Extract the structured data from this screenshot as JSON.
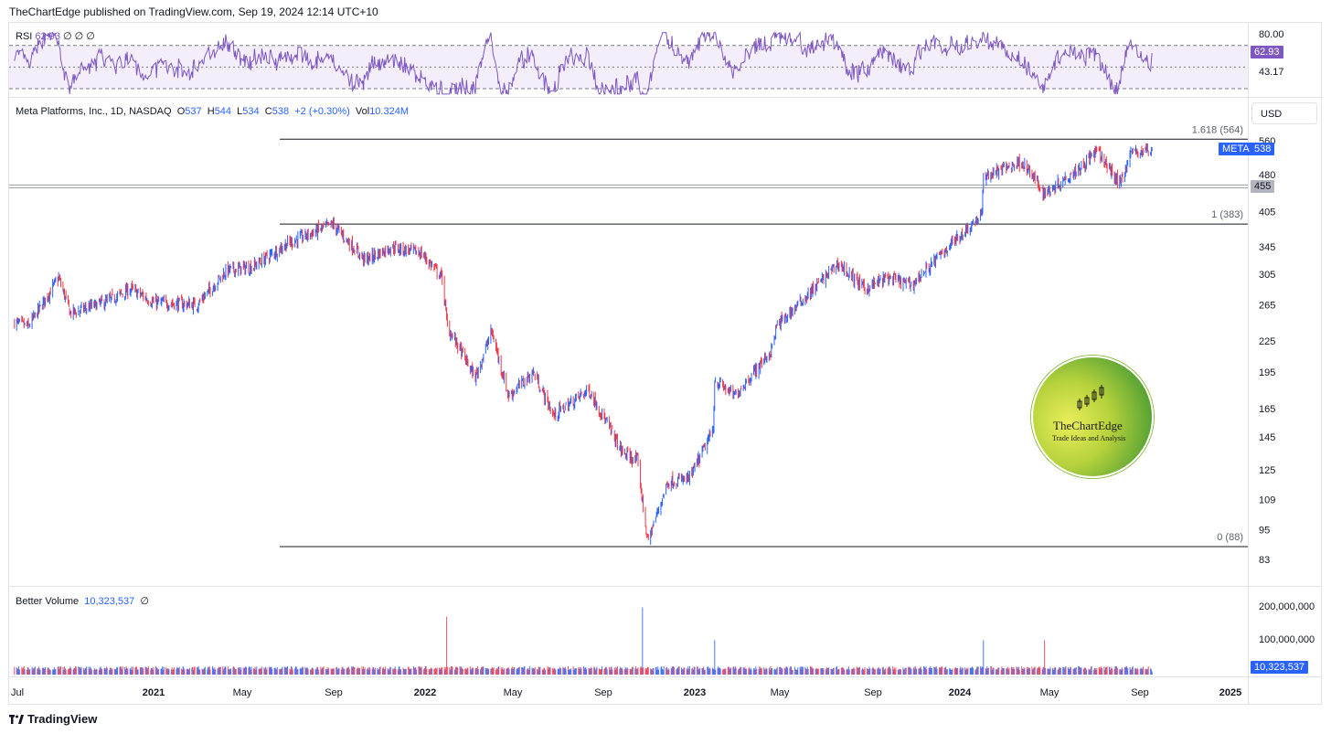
{
  "header": {
    "publisher_line": "TheChartEdge published on TradingView.com, Sep 19, 2024 12:14 UTC+10"
  },
  "rsi": {
    "label": "RSI",
    "value": "62.93",
    "symbols": "∅ ∅ ∅",
    "axis_top": "80.00",
    "axis_bottom": "43.17",
    "current": "62.93",
    "color": "#7e57c2",
    "band_fill": "#f3eefa"
  },
  "price": {
    "legend_symbol": "Meta Platforms, Inc., 1D, NASDAQ",
    "o_label": "O",
    "o": "537",
    "h_label": "H",
    "h": "544",
    "l_label": "L",
    "l": "534",
    "c_label": "C",
    "c": "538",
    "change": "+2 (+0.30%)",
    "vol_label": "Vol",
    "vol": "10.324M",
    "currency": "USD",
    "ticker_tag": "META",
    "last_price": "538",
    "level_tag": "455",
    "up_color": "#2962ff",
    "down_color": "#f23645",
    "axis_ticks": [
      "560",
      "480",
      "405",
      "345",
      "305",
      "265",
      "225",
      "195",
      "165",
      "145",
      "125",
      "109",
      "95",
      "83"
    ],
    "fib": [
      {
        "label": "1.618 (564)",
        "value": 564
      },
      {
        "label": "1 (383)",
        "value": 383
      },
      {
        "label": "0 (88)",
        "value": 88
      }
    ]
  },
  "volume": {
    "label": "Better Volume",
    "value": "10,323,537",
    "symbol": "∅",
    "axis_ticks": [
      "200,000,000",
      "100,000,000"
    ],
    "current_tag": "10,323,537"
  },
  "time_axis": [
    "Jul",
    "2021",
    "May",
    "Sep",
    "2022",
    "May",
    "Sep",
    "2023",
    "May",
    "Sep",
    "2024",
    "May",
    "Sep",
    "2025"
  ],
  "logo": {
    "title": "TheChartEdge",
    "subtitle": "Trade Ideas and Analysis"
  },
  "footer": {
    "brand": "TradingView"
  },
  "chart_data": {
    "type": "candlestick",
    "title": "Meta Platforms, Inc., 1D, NASDAQ",
    "y_scale": "log",
    "ylim": [
      80,
      600
    ],
    "x_range": [
      "2020-07",
      "2025-01"
    ],
    "series": [
      {
        "name": "Meta Platforms, Inc.",
        "approx_price_path": [
          {
            "date": "2020-06-26",
            "value": 245
          },
          {
            "date": "2020-07-15",
            "value": 240
          },
          {
            "date": "2020-08-25",
            "value": 300
          },
          {
            "date": "2020-09-10",
            "value": 255
          },
          {
            "date": "2020-11-01",
            "value": 270
          },
          {
            "date": "2020-12-01",
            "value": 285
          },
          {
            "date": "2021-01-01",
            "value": 268
          },
          {
            "date": "2021-03-01",
            "value": 265
          },
          {
            "date": "2021-04-10",
            "value": 310
          },
          {
            "date": "2021-05-15",
            "value": 315
          },
          {
            "date": "2021-07-01",
            "value": 350
          },
          {
            "date": "2021-09-01",
            "value": 383
          },
          {
            "date": "2021-10-15",
            "value": 325
          },
          {
            "date": "2021-11-20",
            "value": 345
          },
          {
            "date": "2021-12-30",
            "value": 336
          },
          {
            "date": "2022-01-28",
            "value": 300
          },
          {
            "date": "2022-02-04",
            "value": 240
          },
          {
            "date": "2022-03-14",
            "value": 190
          },
          {
            "date": "2022-04-05",
            "value": 235
          },
          {
            "date": "2022-04-28",
            "value": 175
          },
          {
            "date": "2022-06-01",
            "value": 195
          },
          {
            "date": "2022-06-28",
            "value": 160
          },
          {
            "date": "2022-08-15",
            "value": 180
          },
          {
            "date": "2022-09-30",
            "value": 135
          },
          {
            "date": "2022-10-20",
            "value": 130
          },
          {
            "date": "2022-11-03",
            "value": 90
          },
          {
            "date": "2022-11-30",
            "value": 118
          },
          {
            "date": "2022-12-30",
            "value": 120
          },
          {
            "date": "2023-01-31",
            "value": 150
          },
          {
            "date": "2023-02-02",
            "value": 188
          },
          {
            "date": "2023-03-01",
            "value": 175
          },
          {
            "date": "2023-04-20",
            "value": 215
          },
          {
            "date": "2023-04-27",
            "value": 240
          },
          {
            "date": "2023-07-20",
            "value": 320
          },
          {
            "date": "2023-08-25",
            "value": 285
          },
          {
            "date": "2023-09-25",
            "value": 300
          },
          {
            "date": "2023-10-27",
            "value": 290
          },
          {
            "date": "2023-12-20",
            "value": 350
          },
          {
            "date": "2024-01-31",
            "value": 400
          },
          {
            "date": "2024-02-02",
            "value": 475
          },
          {
            "date": "2024-03-25",
            "value": 510
          },
          {
            "date": "2024-04-25",
            "value": 440
          },
          {
            "date": "2024-06-15",
            "value": 500
          },
          {
            "date": "2024-07-05",
            "value": 535
          },
          {
            "date": "2024-08-05",
            "value": 460
          },
          {
            "date": "2024-08-20",
            "value": 530
          },
          {
            "date": "2024-09-18",
            "value": 538
          }
        ]
      }
    ],
    "horizontal_levels": [
      564,
      455,
      383,
      88
    ]
  }
}
